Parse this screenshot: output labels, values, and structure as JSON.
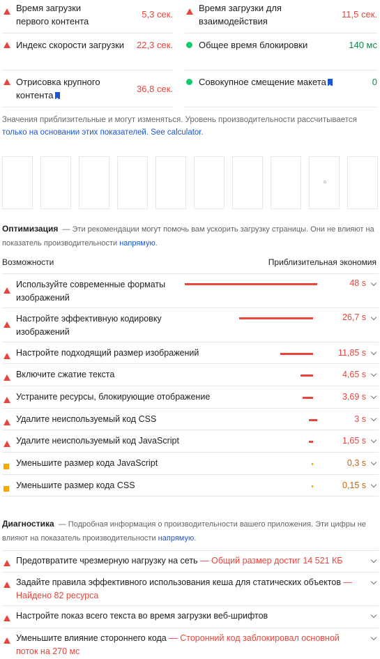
{
  "metrics": [
    {
      "label": "Время загрузки первого контента",
      "value": "5,3 сек.",
      "status": "red"
    },
    {
      "label": "Время загрузки для взаимодействия",
      "value": "11,5 сек.",
      "status": "red"
    },
    {
      "label": "Индекс скорости загрузки",
      "value": "22,3 сек.",
      "status": "red"
    },
    {
      "label": "Общее время блокировки",
      "value": "140 мс",
      "status": "green"
    },
    {
      "label": "Отрисовка крупного контента",
      "value": "36,8 сек.",
      "status": "red"
    },
    {
      "label": "Совокупное смещение макета",
      "value": "0",
      "status": "green"
    }
  ],
  "note": {
    "text": "Значения приблизительные и могут изменяться. Уровень производительности рассчитывается ",
    "link1": "только на основании этих показателей",
    "sep": ". ",
    "link2": "See calculator",
    "end": "."
  },
  "opportunities": {
    "title": "Оптимизация",
    "desc": "Эти рекомендации могут помочь вам ускорить загрузку страницы. Они не влияют на показатель производительности ",
    "link": "напрямую",
    "end": ".",
    "col_left": "Возможности",
    "col_right": "Приблизительная экономия",
    "items": [
      {
        "title": "Используйте современные форматы изображений",
        "saving": "48 s",
        "level": "red",
        "fraction": 1.0
      },
      {
        "title": "Настройте эффективную кодировку изображений",
        "saving": "26,7 s",
        "level": "red",
        "fraction": 0.556
      },
      {
        "title": "Настройте подходящий размер изображений",
        "saving": "11,85 s",
        "level": "red",
        "fraction": 0.247
      },
      {
        "title": "Включите сжатие текста",
        "saving": "4,65 s",
        "level": "red",
        "fraction": 0.097
      },
      {
        "title": "Устраните ресурсы, блокирующие отображение",
        "saving": "3,69 s",
        "level": "red",
        "fraction": 0.077
      },
      {
        "title": "Удалите неиспользуемый код CSS",
        "saving": "3 s",
        "level": "red",
        "fraction": 0.0625
      },
      {
        "title": "Удалите неиспользуемый код JavaScript",
        "saving": "1,65 s",
        "level": "red",
        "fraction": 0.034
      },
      {
        "title": "Уменьшите размер кода JavaScript",
        "saving": "0,3 s",
        "level": "orange",
        "fraction": 0.006
      },
      {
        "title": "Уменьшите размер кода CSS",
        "saving": "0,15 s",
        "level": "orange",
        "fraction": 0.003
      }
    ]
  },
  "diagnostics": {
    "title": "Диагностика",
    "desc": "Подробная информация о производительности вашего приложения. Эти цифры не влияют на показатель производительности ",
    "link": "напрямую",
    "end": ".",
    "items": [
      {
        "title": "Предотвратите чрезмерную нагрузку на сеть",
        "detail": "— Общий размер достиг 14 521 КБ"
      },
      {
        "title": "Задайте правила эффективного использования кеша для статических объектов",
        "detail": "— Найдено 82 ресурса"
      },
      {
        "title": "Настройте показ всего текста во время загрузки веб-шрифтов",
        "detail": ""
      },
      {
        "title": "Уменьшите влияние стороннего кода",
        "detail": "— Сторонний код заблокировал основной поток на 270 мс"
      }
    ]
  },
  "colors": {
    "fail": "#e8453c",
    "pass": "#0cce6b",
    "average": "#ffa400",
    "link": "#1a56d6"
  }
}
